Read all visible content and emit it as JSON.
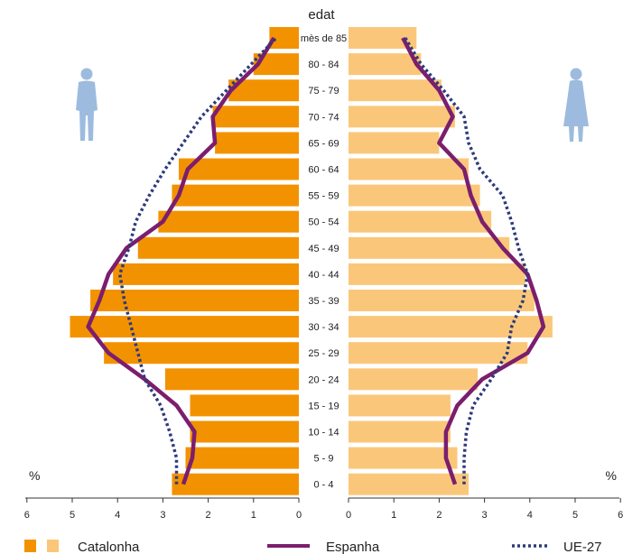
{
  "chart_data": {
    "type": "bar",
    "title": "edat",
    "unit_label": "%",
    "categories": [
      "0 - 4",
      "5 - 9",
      "10 - 14",
      "15 - 19",
      "20 - 24",
      "25 - 29",
      "30 - 34",
      "35 - 39",
      "40 - 44",
      "45 - 49",
      "50 - 54",
      "55 - 59",
      "60 - 64",
      "65 - 69",
      "70 - 74",
      "75 - 79",
      "80 - 84",
      "mès de 85"
    ],
    "x_ticks_left": [
      "6",
      "5",
      "4",
      "3",
      "2",
      "1",
      "0"
    ],
    "x_ticks_right": [
      "0",
      "1",
      "2",
      "3",
      "4",
      "5",
      "6"
    ],
    "xlim": [
      0,
      6
    ],
    "series": [
      {
        "name": "Catalonha",
        "side": "left",
        "type": "bar",
        "values": [
          2.8,
          2.5,
          2.4,
          2.4,
          2.95,
          4.3,
          5.05,
          4.6,
          4.1,
          3.55,
          3.1,
          2.8,
          2.65,
          1.85,
          1.9,
          1.55,
          1.0,
          0.65
        ]
      },
      {
        "name": "Catalonha",
        "side": "right",
        "type": "bar",
        "values": [
          2.65,
          2.4,
          2.25,
          2.25,
          2.85,
          3.95,
          4.5,
          4.1,
          3.9,
          3.55,
          3.15,
          2.9,
          2.65,
          2.0,
          2.35,
          2.05,
          1.6,
          1.5
        ]
      },
      {
        "name": "Espanha",
        "side": "left",
        "type": "line",
        "values": [
          2.55,
          2.35,
          2.3,
          2.7,
          3.4,
          4.2,
          4.65,
          4.4,
          4.2,
          3.8,
          3.0,
          2.65,
          2.45,
          1.85,
          1.9,
          1.5,
          0.9,
          0.55
        ]
      },
      {
        "name": "Espanha",
        "side": "right",
        "type": "line",
        "values": [
          2.35,
          2.15,
          2.15,
          2.4,
          2.95,
          3.95,
          4.3,
          4.15,
          3.95,
          3.4,
          2.95,
          2.7,
          2.55,
          2.0,
          2.3,
          2.0,
          1.5,
          1.2
        ]
      },
      {
        "name": "UE-27",
        "side": "left",
        "type": "line",
        "values": [
          2.7,
          2.7,
          2.85,
          3.05,
          3.4,
          3.55,
          3.7,
          3.85,
          3.95,
          3.75,
          3.6,
          3.3,
          2.95,
          2.55,
          2.15,
          1.6,
          1.05,
          0.5
        ]
      },
      {
        "name": "UE-27",
        "side": "right",
        "type": "line",
        "values": [
          2.55,
          2.55,
          2.6,
          2.75,
          3.15,
          3.5,
          3.6,
          3.85,
          3.95,
          3.75,
          3.6,
          3.4,
          2.9,
          2.65,
          2.55,
          2.1,
          1.6,
          1.25
        ]
      }
    ],
    "legend": {
      "position": "bottom",
      "items": [
        "Catalonha",
        "Espanha",
        "UE-27"
      ]
    },
    "colors": {
      "male_bar": "#F39200",
      "female_bar": "#FAC77A",
      "espanha": "#7B1E6E",
      "ue27": "#2E3A7A",
      "male_icon": "#9DBBDE",
      "female_icon": "#9DBBDE",
      "axis": "#333333"
    },
    "icons": {
      "left": "man-icon",
      "right": "woman-icon"
    }
  }
}
